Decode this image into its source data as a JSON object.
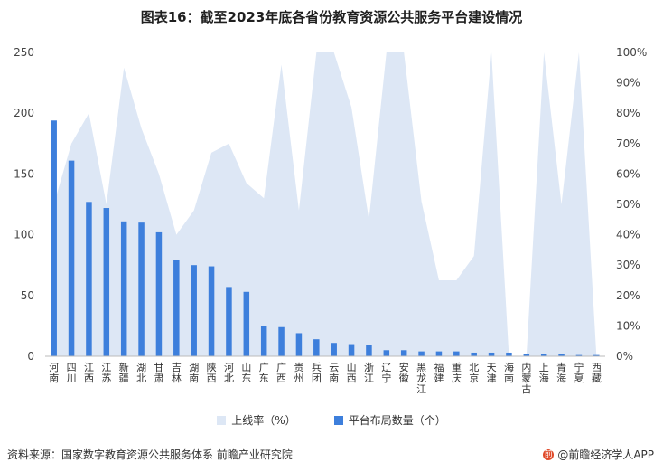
{
  "chart_data": {
    "type": "bar",
    "title": "图表16：截至2023年底各省份教育资源公共服务平台建设情况",
    "categories": [
      "河南",
      "四川",
      "江西",
      "江苏",
      "新疆",
      "湖北",
      "甘肃",
      "吉林",
      "湖南",
      "陕西",
      "河北",
      "山东",
      "广东",
      "广西",
      "贵州",
      "兵团",
      "云南",
      "山西",
      "浙江",
      "辽宁",
      "安徽",
      "黑龙江",
      "福建",
      "重庆",
      "北京",
      "天津",
      "海南",
      "内蒙古",
      "上海",
      "青海",
      "宁夏",
      "西藏"
    ],
    "series": [
      {
        "name": "上线率（%）",
        "type": "area",
        "axis": "right",
        "color": "#dde7f5",
        "values": [
          50,
          70,
          80,
          50,
          95,
          75,
          60,
          40,
          48,
          67,
          70,
          57,
          52,
          96,
          48,
          100,
          100,
          82,
          45,
          100,
          100,
          51,
          25,
          25,
          33,
          100,
          0,
          0,
          100,
          50,
          100,
          0
        ]
      },
      {
        "name": "平台布局数量（个）",
        "type": "bar",
        "axis": "left",
        "color": "#3d7fdc",
        "values": [
          194,
          161,
          127,
          122,
          111,
          110,
          102,
          79,
          75,
          74,
          57,
          53,
          25,
          24,
          19,
          14,
          11,
          10,
          9,
          5,
          5,
          4,
          4,
          4,
          3,
          3,
          3,
          2,
          2,
          2,
          1,
          1
        ]
      }
    ],
    "ylim_left": [
      0,
      250
    ],
    "yticks_left": [
      "0",
      "50",
      "100",
      "150",
      "200",
      "250"
    ],
    "ylim_right": [
      0,
      100
    ],
    "yticks_right": [
      "0%",
      "10%",
      "20%",
      "30%",
      "40%",
      "50%",
      "60%",
      "70%",
      "80%",
      "90%",
      "100%"
    ],
    "grid": false,
    "legend_position": "bottom"
  },
  "footer": {
    "source": "资料来源：国家数字教育资源公共服务体系 前瞻产业研究院",
    "brand": "@前瞻经济学人APP"
  }
}
